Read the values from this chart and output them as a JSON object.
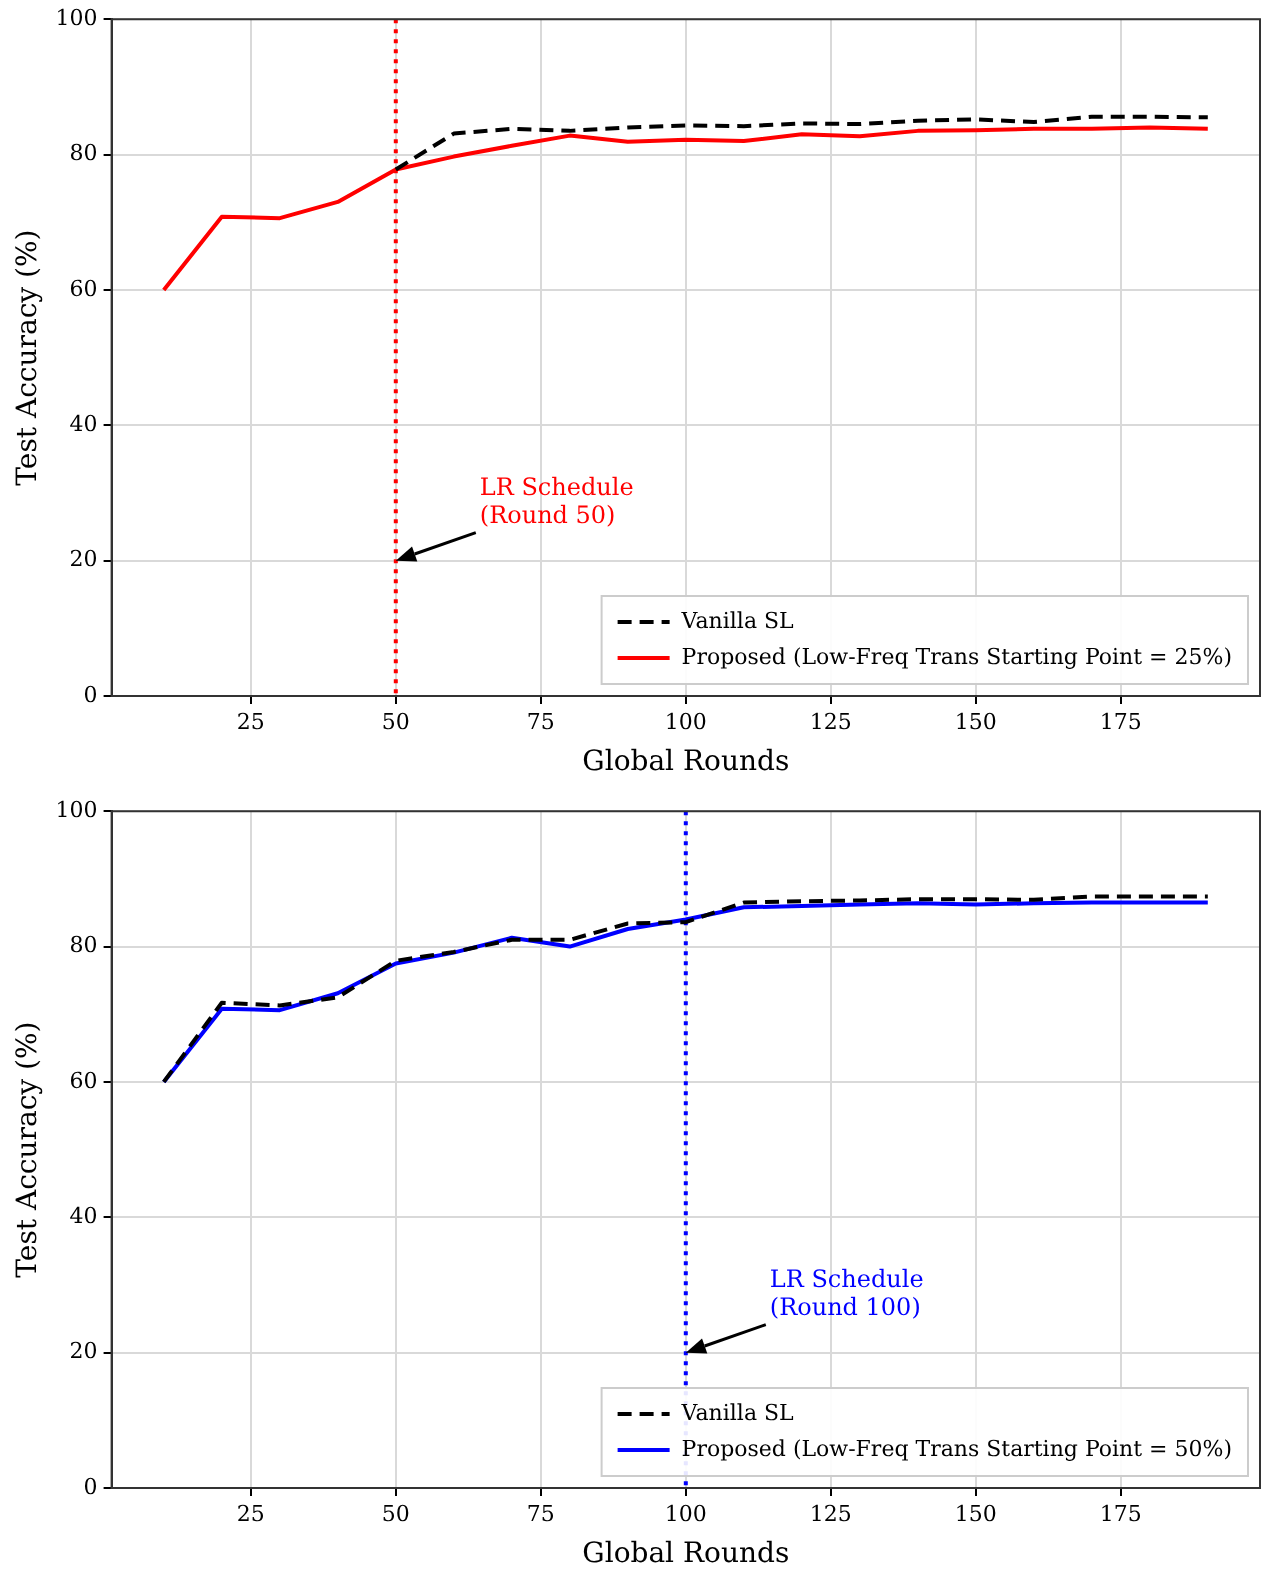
{
  "chart_data": [
    {
      "type": "line",
      "xlabel": "Global Rounds",
      "ylabel": "Test Accuracy (%)",
      "x": [
        10,
        20,
        30,
        40,
        50,
        60,
        70,
        80,
        90,
        100,
        110,
        120,
        130,
        140,
        150,
        160,
        170,
        180,
        190
      ],
      "series": [
        {
          "name": "Vanilla SL",
          "color": "#000000",
          "line_style": "dashed",
          "values": [
            null,
            null,
            null,
            null,
            77.8,
            83.1,
            83.8,
            83.5,
            84,
            84.3,
            84.2,
            84.6,
            84.5,
            85,
            85.2,
            84.8,
            85.6,
            85.6,
            85.5
          ]
        },
        {
          "name": "Proposed (Low-Freq Trans Starting Point = 25%)",
          "color": "#ff0000",
          "line_style": "solid",
          "values": [
            60,
            70.8,
            70.6,
            73,
            77.8,
            79.7,
            81.3,
            82.8,
            81.9,
            82.2,
            82,
            83,
            82.7,
            83.5,
            83.6,
            83.8,
            83.8,
            84,
            83.8
          ]
        }
      ],
      "xlim": [
        1,
        199
      ],
      "xticks": [
        25,
        50,
        75,
        100,
        125,
        150,
        175
      ],
      "ylim": [
        0,
        100
      ],
      "yticks": [
        0,
        20,
        40,
        60,
        80,
        100
      ],
      "ref_lines": [
        {
          "axis": "x",
          "value": 50,
          "color": "#ff0000",
          "line_style": "dotted",
          "label": "LR Schedule\n(Round 50)"
        }
      ],
      "grid": true,
      "legend": "bottom right",
      "marker": "none"
    },
    {
      "type": "line",
      "xlabel": "Global Rounds",
      "ylabel": "Test Accuracy (%)",
      "x": [
        10,
        20,
        30,
        40,
        50,
        60,
        70,
        80,
        90,
        100,
        110,
        120,
        130,
        140,
        150,
        160,
        170,
        180,
        190
      ],
      "series": [
        {
          "name": "Vanilla SL",
          "color": "#000000",
          "line_style": "dashed",
          "values": [
            60,
            71.7,
            71.3,
            72.5,
            77.9,
            79.2,
            81,
            81,
            83.4,
            83.6,
            86.5,
            86.7,
            86.8,
            87,
            87,
            86.9,
            87.4,
            87.4,
            87.4
          ]
        },
        {
          "name": "Proposed (Low-Freq Trans Starting Point = 50%)",
          "color": "#0000ff",
          "line_style": "solid",
          "values": [
            60,
            70.8,
            70.6,
            73.1,
            77.5,
            79.1,
            81.3,
            80,
            82.6,
            84,
            85.8,
            86,
            86.2,
            86.4,
            86.2,
            86.4,
            86.5,
            86.5,
            86.5
          ]
        }
      ],
      "xlim": [
        1,
        199
      ],
      "xticks": [
        25,
        50,
        75,
        100,
        125,
        150,
        175
      ],
      "ylim": [
        0,
        100
      ],
      "yticks": [
        0,
        20,
        40,
        60,
        80,
        100
      ],
      "ref_lines": [
        {
          "axis": "x",
          "value": 100,
          "color": "#0000ff",
          "line_style": "dotted",
          "label": "LR Schedule\n(Round 100)"
        }
      ],
      "grid": true,
      "legend": "bottom right",
      "marker": "none"
    }
  ]
}
